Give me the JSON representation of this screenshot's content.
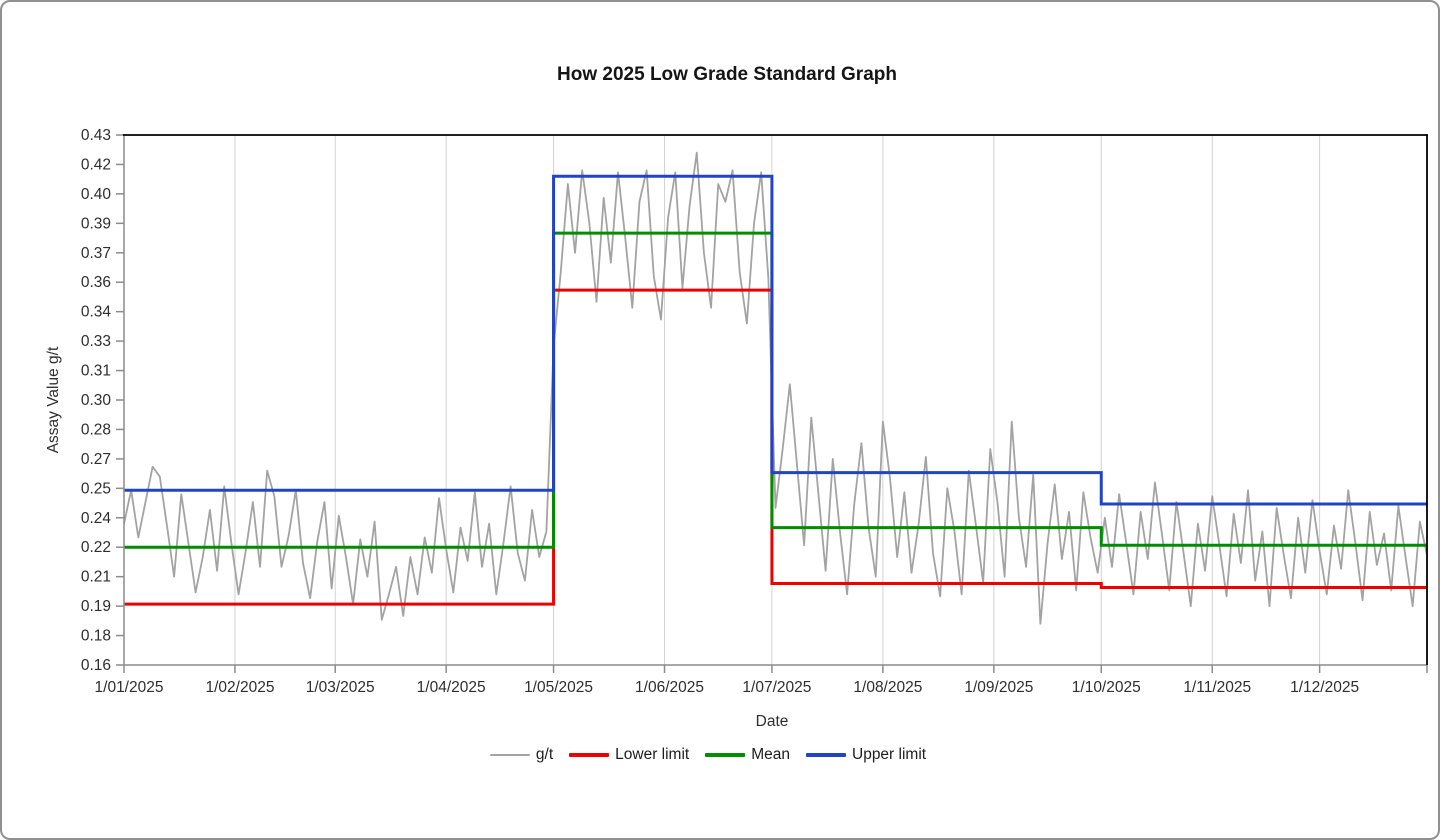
{
  "frame": {
    "background_color": "#ffffff",
    "border_color": "#909090"
  },
  "chart_data": {
    "type": "line",
    "title": "How 2025 Low Grade Standard Graph",
    "xlabel": "Date",
    "ylabel": "Assay Value g/t",
    "ylim": [
      0.16,
      0.43
    ],
    "y_tick_values": [
      0.43,
      0.415,
      0.4,
      0.385,
      0.37,
      0.355,
      0.34,
      0.325,
      0.31,
      0.295,
      0.28,
      0.265,
      0.25,
      0.235,
      0.22,
      0.205,
      0.19,
      0.175,
      0.16
    ],
    "y_tick_labels": [
      "0.43",
      "0.42",
      "0.40",
      "0.39",
      "0.37",
      "0.36",
      "0.34",
      "0.33",
      "0.31",
      "0.30",
      "0.28",
      "0.27",
      "0.25",
      "0.24",
      "0.22",
      "0.21",
      "0.19",
      "0.18",
      "0.16"
    ],
    "x_tick_labels": [
      "1/01/2025",
      "1/02/2025",
      "1/03/2025",
      "1/04/2025",
      "1/05/2025",
      "1/06/2025",
      "1/07/2025",
      "1/08/2025",
      "1/09/2025",
      "1/10/2025",
      "1/11/2025",
      "1/12/2025"
    ],
    "x_tick_days": [
      0,
      31,
      59,
      90,
      120,
      151,
      181,
      212,
      243,
      273,
      304,
      334
    ],
    "x_range_days": [
      0,
      364
    ],
    "grid": {
      "vertical": true,
      "horizontal": false,
      "color": "#d2d2d2"
    },
    "legend_position": "bottom",
    "axis_colors": {
      "axis_line": "#8c8c8c",
      "plot_border": "#000000",
      "tick_text": "#2e2e2e"
    },
    "series": [
      {
        "name": "g/t",
        "type": "noisy-line",
        "color": "#a3a3a3",
        "width": 1.8,
        "start_day": 0,
        "step_days": 2,
        "values": [
          0.232,
          0.249,
          0.225,
          0.243,
          0.261,
          0.256,
          0.231,
          0.205,
          0.247,
          0.222,
          0.197,
          0.215,
          0.239,
          0.208,
          0.251,
          0.222,
          0.196,
          0.218,
          0.243,
          0.21,
          0.259,
          0.246,
          0.21,
          0.226,
          0.249,
          0.212,
          0.194,
          0.223,
          0.243,
          0.199,
          0.236,
          0.215,
          0.191,
          0.224,
          0.205,
          0.233,
          0.183,
          0.196,
          0.21,
          0.185,
          0.215,
          0.196,
          0.225,
          0.207,
          0.245,
          0.219,
          0.197,
          0.23,
          0.213,
          0.248,
          0.21,
          0.232,
          0.196,
          0.222,
          0.251,
          0.217,
          0.203,
          0.239,
          0.215,
          0.228,
          0.322,
          0.36,
          0.405,
          0.37,
          0.412,
          0.385,
          0.345,
          0.398,
          0.365,
          0.411,
          0.378,
          0.342,
          0.396,
          0.412,
          0.358,
          0.336,
          0.388,
          0.411,
          0.352,
          0.394,
          0.421,
          0.37,
          0.342,
          0.405,
          0.396,
          0.412,
          0.36,
          0.334,
          0.385,
          0.411,
          0.357,
          0.24,
          0.27,
          0.303,
          0.262,
          0.221,
          0.286,
          0.247,
          0.208,
          0.265,
          0.228,
          0.196,
          0.242,
          0.273,
          0.23,
          0.205,
          0.284,
          0.255,
          0.215,
          0.248,
          0.207,
          0.232,
          0.266,
          0.217,
          0.195,
          0.25,
          0.228,
          0.196,
          0.259,
          0.231,
          0.202,
          0.27,
          0.243,
          0.205,
          0.284,
          0.235,
          0.21,
          0.257,
          0.181,
          0.222,
          0.252,
          0.214,
          0.238,
          0.198,
          0.248,
          0.225,
          0.207,
          0.235,
          0.21,
          0.247,
          0.222,
          0.196,
          0.238,
          0.214,
          0.253,
          0.226,
          0.198,
          0.243,
          0.217,
          0.19,
          0.232,
          0.208,
          0.246,
          0.221,
          0.195,
          0.237,
          0.212,
          0.249,
          0.203,
          0.228,
          0.19,
          0.24,
          0.216,
          0.194,
          0.235,
          0.207,
          0.244,
          0.218,
          0.196,
          0.231,
          0.209,
          0.249,
          0.222,
          0.193,
          0.238,
          0.211,
          0.227,
          0.198,
          0.241,
          0.215,
          0.19,
          0.233,
          0.216
        ]
      },
      {
        "name": "Lower limit",
        "type": "step-line",
        "color": "#ee0000",
        "width": 3,
        "segments": [
          {
            "from_day": 0,
            "to_day": 120,
            "value": 0.191
          },
          {
            "from_day": 120,
            "to_day": 181,
            "value": 0.351
          },
          {
            "from_day": 181,
            "to_day": 273,
            "value": 0.2015
          },
          {
            "from_day": 273,
            "to_day": 364,
            "value": 0.1995
          }
        ]
      },
      {
        "name": "Mean",
        "type": "step-line",
        "color": "#008d00",
        "width": 3,
        "segments": [
          {
            "from_day": 0,
            "to_day": 120,
            "value": 0.22
          },
          {
            "from_day": 120,
            "to_day": 181,
            "value": 0.38
          },
          {
            "from_day": 181,
            "to_day": 273,
            "value": 0.23
          },
          {
            "from_day": 273,
            "to_day": 364,
            "value": 0.221
          }
        ]
      },
      {
        "name": "Upper limit",
        "type": "step-line",
        "color": "#2143c8",
        "width": 3,
        "segments": [
          {
            "from_day": 0,
            "to_day": 120,
            "value": 0.249
          },
          {
            "from_day": 120,
            "to_day": 181,
            "value": 0.409
          },
          {
            "from_day": 181,
            "to_day": 273,
            "value": 0.258
          },
          {
            "from_day": 273,
            "to_day": 364,
            "value": 0.242
          }
        ]
      }
    ]
  }
}
